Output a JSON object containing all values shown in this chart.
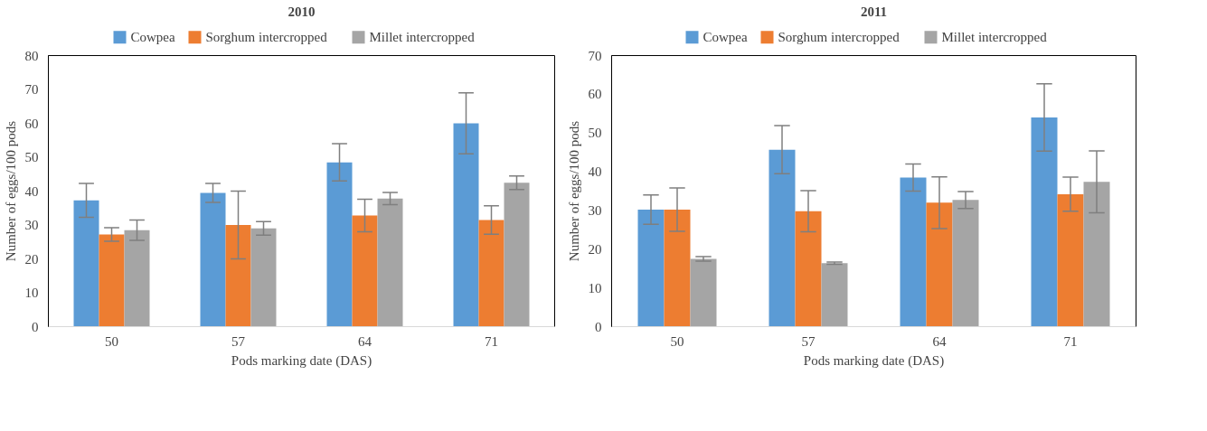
{
  "chart_data": [
    {
      "type": "bar",
      "title": "2010",
      "xlabel": "Pods marking date (DAS)",
      "ylabel": "Number of eggs/100 pods",
      "categories": [
        "50",
        "57",
        "64",
        "71"
      ],
      "ylim": [
        0,
        80
      ],
      "yticks": [
        0,
        10,
        20,
        30,
        40,
        50,
        60,
        70,
        80
      ],
      "grid": false,
      "legend": "top",
      "series": [
        {
          "name": "Cowpea",
          "color": "#5b9bd5",
          "values": [
            37.3,
            39.5,
            48.5,
            60
          ],
          "errors": [
            5,
            2.8,
            5.5,
            9
          ]
        },
        {
          "name": "Sorghum intercropped",
          "color": "#ed7d31",
          "values": [
            27.2,
            30,
            32.8,
            31.5
          ],
          "errors": [
            2,
            10,
            4.8,
            4.2
          ]
        },
        {
          "name": "Millet intercropped",
          "color": "#a5a5a5",
          "values": [
            28.5,
            29,
            37.8,
            42.5
          ],
          "errors": [
            3,
            2,
            1.8,
            2
          ]
        }
      ]
    },
    {
      "type": "bar",
      "title": "2011",
      "xlabel": "Pods marking date (DAS)",
      "ylabel": "Number of eggs/100 pods",
      "categories": [
        "50",
        "57",
        "64",
        "71"
      ],
      "ylim": [
        0,
        70
      ],
      "yticks": [
        0,
        10,
        20,
        30,
        40,
        50,
        60,
        70
      ],
      "grid": false,
      "legend": "top",
      "series": [
        {
          "name": "Cowpea",
          "color": "#5b9bd5",
          "values": [
            30.2,
            45.7,
            38.5,
            54
          ],
          "errors": [
            3.8,
            6.2,
            3.5,
            8.7
          ]
        },
        {
          "name": "Sorghum intercropped",
          "color": "#ed7d31",
          "values": [
            30.2,
            29.8,
            32,
            34.2
          ],
          "errors": [
            5.6,
            5.3,
            6.7,
            4.4
          ]
        },
        {
          "name": "Millet intercropped",
          "color": "#a5a5a5",
          "values": [
            17.5,
            16.4,
            32.7,
            37.4
          ],
          "errors": [
            0.6,
            0.3,
            2.2,
            8
          ]
        }
      ]
    }
  ]
}
